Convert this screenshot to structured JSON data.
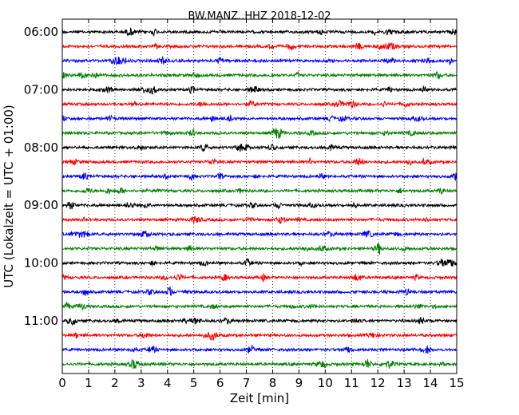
{
  "chart_data": {
    "type": "line",
    "title": "BW.MANZ..HHZ 2018-12-02",
    "xlabel": "Zeit  [min]",
    "ylabel": "UTC (Lokalzeit = UTC + 01:00)",
    "xlim": [
      0,
      15
    ],
    "x_ticks": [
      "0",
      "1",
      "2",
      "3",
      "4",
      "5",
      "6",
      "7",
      "8",
      "9",
      "10",
      "11",
      "12",
      "13",
      "14",
      "15"
    ],
    "y_ticks": [
      "06:00",
      "07:00",
      "08:00",
      "09:00",
      "10:00",
      "11:00"
    ],
    "grid_x": true,
    "grid_style": "dotted",
    "trace_minutes": 15,
    "series": [
      {
        "start": "06:00",
        "color": "#000000"
      },
      {
        "start": "06:15",
        "color": "#ff0000"
      },
      {
        "start": "06:30",
        "color": "#0000ff"
      },
      {
        "start": "06:45",
        "color": "#008000"
      },
      {
        "start": "07:00",
        "color": "#000000"
      },
      {
        "start": "07:15",
        "color": "#ff0000"
      },
      {
        "start": "07:30",
        "color": "#0000ff"
      },
      {
        "start": "07:45",
        "color": "#008000"
      },
      {
        "start": "08:00",
        "color": "#000000"
      },
      {
        "start": "08:15",
        "color": "#ff0000"
      },
      {
        "start": "08:30",
        "color": "#0000ff"
      },
      {
        "start": "08:45",
        "color": "#008000"
      },
      {
        "start": "09:00",
        "color": "#000000"
      },
      {
        "start": "09:15",
        "color": "#ff0000"
      },
      {
        "start": "09:30",
        "color": "#0000ff"
      },
      {
        "start": "09:45",
        "color": "#008000"
      },
      {
        "start": "10:00",
        "color": "#000000"
      },
      {
        "start": "10:15",
        "color": "#ff0000"
      },
      {
        "start": "10:30",
        "color": "#0000ff"
      },
      {
        "start": "10:45",
        "color": "#008000"
      },
      {
        "start": "11:00",
        "color": "#000000"
      },
      {
        "start": "11:15",
        "color": "#ff0000"
      },
      {
        "start": "11:30",
        "color": "#0000ff"
      },
      {
        "start": "11:45",
        "color": "#008000"
      }
    ]
  }
}
